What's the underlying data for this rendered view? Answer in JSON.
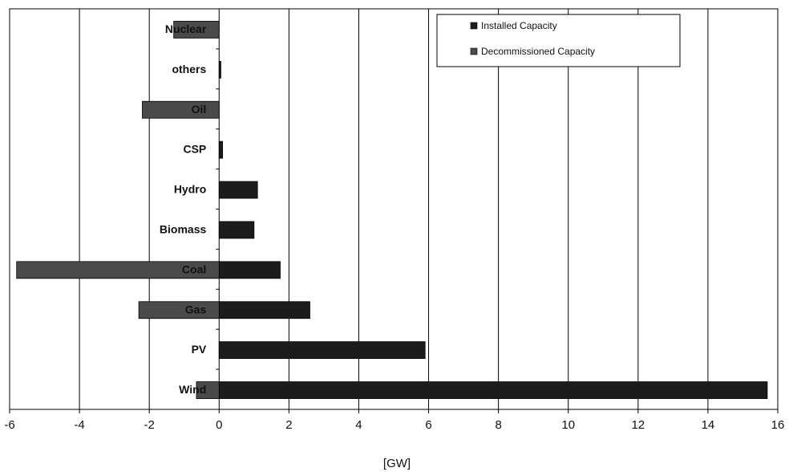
{
  "chart_data": {
    "type": "bar",
    "orientation": "horizontal",
    "categories": [
      "Nuclear",
      "others",
      "Oil",
      "CSP",
      "Hydro",
      "Biomass",
      "Coal",
      "Gas",
      "PV",
      "Wind"
    ],
    "series": [
      {
        "name": "Installed Capacity",
        "color": "#1c1c1c",
        "values": [
          0,
          0.05,
          0,
          0.1,
          1.1,
          1.0,
          1.75,
          2.6,
          5.9,
          15.7
        ]
      },
      {
        "name": "Decommissioned Capacity",
        "color": "#4a4a4a",
        "values": [
          -1.3,
          0,
          -2.2,
          0,
          0,
          0,
          -5.8,
          -2.3,
          0,
          -0.65
        ]
      }
    ],
    "xlabel": "[GW]",
    "ylabel": "",
    "xlim": [
      -6,
      16
    ],
    "xticks": [
      "-6",
      "-4",
      "-2",
      "0",
      "2",
      "4",
      "6",
      "8",
      "10",
      "12",
      "14",
      "16"
    ],
    "grid": "vertical",
    "legend": "top-right"
  }
}
